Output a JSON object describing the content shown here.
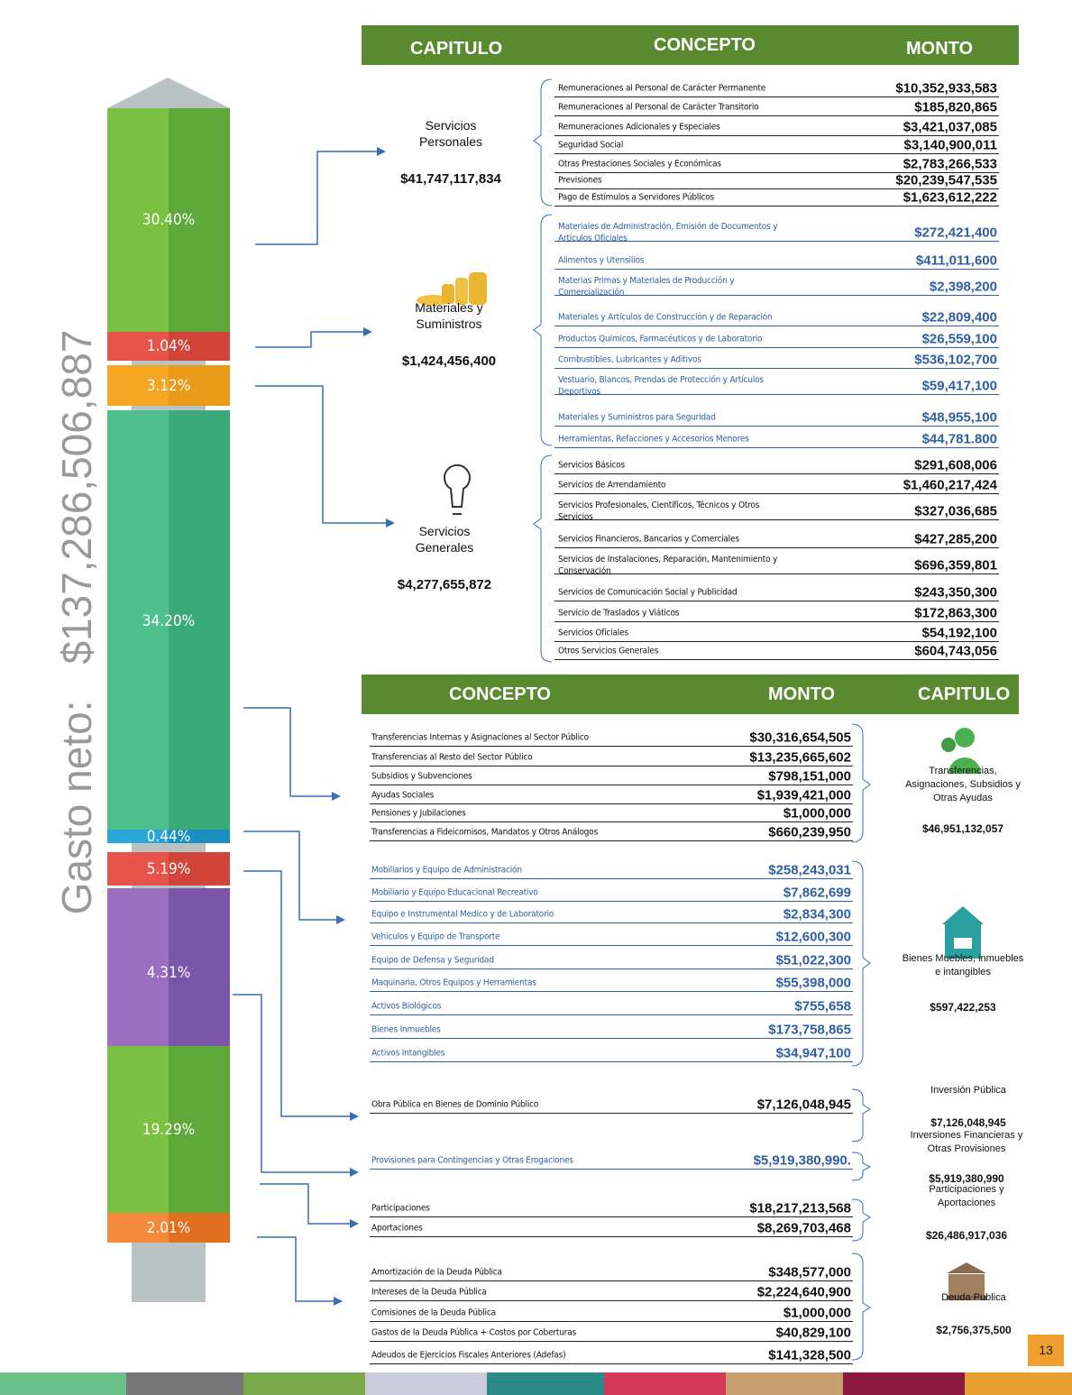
{
  "total": {
    "label": "Gasto neto:",
    "amount": "$137,286,506,887"
  },
  "column": {
    "segments": [
      "30.40%",
      "1.04%",
      "3.12%",
      "34.20%",
      "0.44%",
      "5.19%",
      "4.31%",
      "19.29%",
      "2.01%"
    ]
  },
  "top_table": {
    "headers": [
      "CAPITULO",
      "CONCEPTO",
      "MONTO"
    ],
    "groups": [
      {
        "chapter": "Servicios Personales",
        "amount": "$41,747,117,834",
        "items": [
          {
            "concept": "Remuneraciones al Personal de Carácter Permanente",
            "amount": "$10,352,933,583"
          },
          {
            "concept": "Remuneraciones al Personal de Carácter Transitorio",
            "amount": "$185,820,865"
          },
          {
            "concept": "Remuneraciones Adicionales y Especiales",
            "amount": "$3,421,037,085"
          },
          {
            "concept": "Seguridad Social",
            "amount": "$3,140,900,011"
          },
          {
            "concept": "Otras Prestaciones Sociales y Económicas",
            "amount": "$2,783,266,533"
          },
          {
            "concept": "Previsiones",
            "amount": "$20,239,547,535"
          },
          {
            "concept": "Pago de Estímulos a Servidores Públicos",
            "amount": "$1,623,612,222"
          }
        ]
      },
      {
        "chapter": "Materiales y Suministros",
        "amount": "$1,424,456,400",
        "items": [
          {
            "concept": "Materiales de Administración, Emisión de Documentos y Artículos Oficiales",
            "amount": "$272,421,400"
          },
          {
            "concept": "Alimentos y Utensilios",
            "amount": "$411,011,600"
          },
          {
            "concept": "Materias Primas y Materiales de Producción y Comercialización",
            "amount": "$2,398,200"
          },
          {
            "concept": "Materiales y Artículos de Construcción y de Reparación",
            "amount": "$22,809,400"
          },
          {
            "concept": "Productos Químicos, Farmacéuticos y de Laboratorio",
            "amount": "$26,559,100"
          },
          {
            "concept": "Combustibles, Lubricantes y Aditivos",
            "amount": "$536,102,700"
          },
          {
            "concept": "Vestuario, Blancos, Prendas de Protección y Artículos Deportivos",
            "amount": "$59,417,100"
          },
          {
            "concept": "Materiales y Suministros para Seguridad",
            "amount": "$48,955,100"
          },
          {
            "concept": "Herramientas, Refacciones y Accesorios Menores",
            "amount": "$44,781.800"
          }
        ]
      },
      {
        "chapter": "Servicios Generales",
        "amount": "$4,277,655,872",
        "items": [
          {
            "concept": "Servicios Básicos",
            "amount": "$291,608,006"
          },
          {
            "concept": "Servicios de Arrendamiento",
            "amount": "$1,460,217,424"
          },
          {
            "concept": "Servicios Profesionales, Científicos, Técnicos y Otros Servicios",
            "amount": "$327,036,685"
          },
          {
            "concept": "Servicios Financieros, Bancarios y Comerciales",
            "amount": "$427,285,200"
          },
          {
            "concept": "Servicios de Instalaciones, Reparación, Mantenimiento y Conservación",
            "amount": "$696,359,801"
          },
          {
            "concept": "Servicios de Comunicación Social y Publicidad",
            "amount": "$243,350,300"
          },
          {
            "concept": "Servicio de Traslados y Viáticos",
            "amount": "$172,863,300"
          },
          {
            "concept": "Servicios Oficiales",
            "amount": "$54,192,100"
          },
          {
            "concept": "Otros Servicios Generales",
            "amount": "$604,743,056"
          }
        ]
      }
    ]
  },
  "bottom_table": {
    "headers": [
      "CONCEPTO",
      "MONTO",
      "CAPITULO"
    ],
    "groups": [
      {
        "chapter": "Transferencias, Asignaciones, Subsidios y Otras Ayudas",
        "amount": "$46,951,132,057",
        "items": [
          {
            "concept": "Transferencias Internas y Asignaciones al Sector Público",
            "amount": "$30,316,654,505"
          },
          {
            "concept": "Transferencias al Resto del Sector Público",
            "amount": "$13,235,665,602"
          },
          {
            "concept": "Subsidios y Subvenciones",
            "amount": "$798,151,000"
          },
          {
            "concept": "Ayudas Sociales",
            "amount": "$1,939,421,000"
          },
          {
            "concept": "Pensiones y Jubilaciones",
            "amount": "$1,000,000"
          },
          {
            "concept": "Transferencias a Fideicomisos, Mandatos y Otros Análogos",
            "amount": "$660,239,950"
          }
        ]
      },
      {
        "chapter": "Bienes Muebles, inmuebles e intangibles",
        "amount": "$597,422,253",
        "items": [
          {
            "concept": "Mobiliarios y Equipo de Administración",
            "amount": "$258,243,031"
          },
          {
            "concept": "Mobiliario y Equipo Educacional Recreativo",
            "amount": "$7,862,699"
          },
          {
            "concept": "Equipo e Instrumental Medico y de Laboratorio",
            "amount": "$2,834,300"
          },
          {
            "concept": "Vehiculos y Equipo de Transporte",
            "amount": "$12,600,300"
          },
          {
            "concept": "Equipo de Defensa y Seguridad",
            "amount": "$51,022,300"
          },
          {
            "concept": "Maquinaria, Otros Equipos y Herramientas",
            "amount": "$55,398,000"
          },
          {
            "concept": "Activos Biológicos",
            "amount": "$755,658"
          },
          {
            "concept": "Bienes Inmuebles",
            "amount": "$173,758,865"
          },
          {
            "concept": "Activos Intangibles",
            "amount": "$34,947,100"
          }
        ]
      },
      {
        "chapter": "Inversión Pública",
        "amount": "$7,126,048,945",
        "items": [
          {
            "concept": "Obra Pública en Bienes de Dominio Público",
            "amount": "$7,126,048,945"
          }
        ]
      },
      {
        "chapter": "Inversiones Financieras y Otras Provisiones",
        "amount": "$5,919,380,990",
        "items": [
          {
            "concept": "Provisiones para Contingencias y Otras Erogaciones",
            "amount": "$5,919,380,990."
          }
        ]
      },
      {
        "chapter": "Participaciones y Aportaciones",
        "amount": "$26,486,917,036",
        "items": [
          {
            "concept": "Participaciones",
            "amount": "$18,217,213,568"
          },
          {
            "concept": "Aportaciones",
            "amount": "$8,269,703,468"
          }
        ]
      },
      {
        "chapter": "Deuda Publica",
        "amount": "$2,756,375,500",
        "items": [
          {
            "concept": "Amortización de la Deuda Pública",
            "amount": "$348,577,000"
          },
          {
            "concept": "Intereses de la Deuda Pública",
            "amount": "$2,224,640,900"
          },
          {
            "concept": "Comisiones de la Deuda Pública",
            "amount": "$1,000,000"
          },
          {
            "concept": "Gastos de la Deuda Pública + Costos por Coberturas",
            "amount": "$40,829,100"
          },
          {
            "concept": "Adeudos de Ejercicios Fiscales Anteriores (Adefas)",
            "amount": "$141,328,500"
          }
        ]
      }
    ]
  },
  "page_number": "13"
}
